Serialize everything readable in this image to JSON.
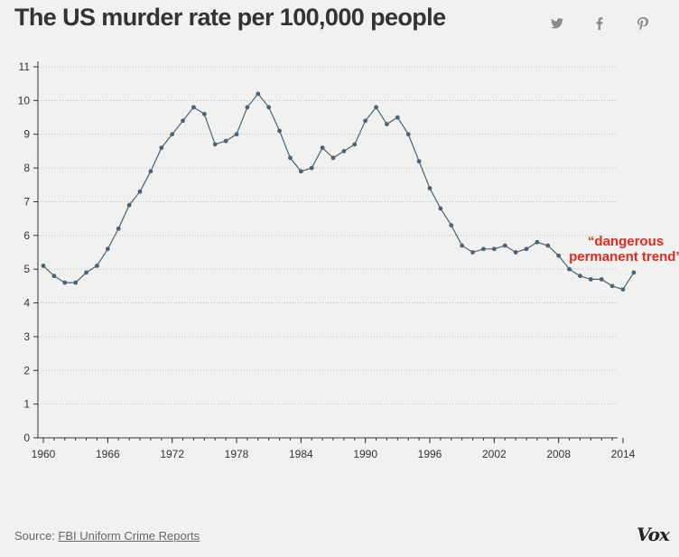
{
  "header": {
    "title": "The US murder rate per 100,000 people"
  },
  "share_icons": [
    "twitter-icon",
    "facebook-icon",
    "pinterest-icon"
  ],
  "source": {
    "prefix": "Source: ",
    "link_text": "FBI Uniform Crime Reports"
  },
  "brand": {
    "logo_text": "Vox"
  },
  "colors": {
    "line": "#4a6474",
    "annotation": "#e5291f",
    "axis": "#333333",
    "title": "#333333"
  },
  "chart_data": {
    "type": "line",
    "title": "The US murder rate per 100,000 people",
    "xlabel": "",
    "ylabel": "",
    "xlim": [
      1960,
      2014
    ],
    "ylim": [
      0,
      11
    ],
    "x_ticks": [
      1960,
      1966,
      1972,
      1978,
      1984,
      1990,
      1996,
      2002,
      2008,
      2014
    ],
    "y_ticks": [
      0,
      1,
      2,
      3,
      4,
      5,
      6,
      7,
      8,
      9,
      10,
      11
    ],
    "grid": "horizontal dotted",
    "series": [
      {
        "name": "Murder rate",
        "x": [
          1960,
          1961,
          1962,
          1963,
          1964,
          1965,
          1966,
          1967,
          1968,
          1969,
          1970,
          1971,
          1972,
          1973,
          1974,
          1975,
          1976,
          1977,
          1978,
          1979,
          1980,
          1981,
          1982,
          1983,
          1984,
          1985,
          1986,
          1987,
          1988,
          1989,
          1990,
          1991,
          1992,
          1993,
          1994,
          1995,
          1996,
          1997,
          1998,
          1999,
          2000,
          2001,
          2002,
          2003,
          2004,
          2005,
          2006,
          2007,
          2008,
          2009,
          2010,
          2011,
          2012,
          2013,
          2014,
          2015
        ],
        "values": [
          5.1,
          4.8,
          4.6,
          4.6,
          4.9,
          5.1,
          5.6,
          6.2,
          6.9,
          7.3,
          7.9,
          8.6,
          9.0,
          9.4,
          9.8,
          9.6,
          8.7,
          8.8,
          9.0,
          9.8,
          10.2,
          9.8,
          9.1,
          8.3,
          7.9,
          8.0,
          8.6,
          8.3,
          8.5,
          8.7,
          9.4,
          9.8,
          9.3,
          9.5,
          9.0,
          8.2,
          7.4,
          6.8,
          6.3,
          5.7,
          5.5,
          5.6,
          5.6,
          5.7,
          5.5,
          5.6,
          5.8,
          5.7,
          5.4,
          5.0,
          4.8,
          4.7,
          4.7,
          4.5,
          4.4,
          4.9
        ]
      }
    ],
    "annotations": [
      {
        "lines": [
          "“dangerous",
          "permanent trend”"
        ],
        "x": 2015,
        "y": 4.9
      }
    ]
  }
}
